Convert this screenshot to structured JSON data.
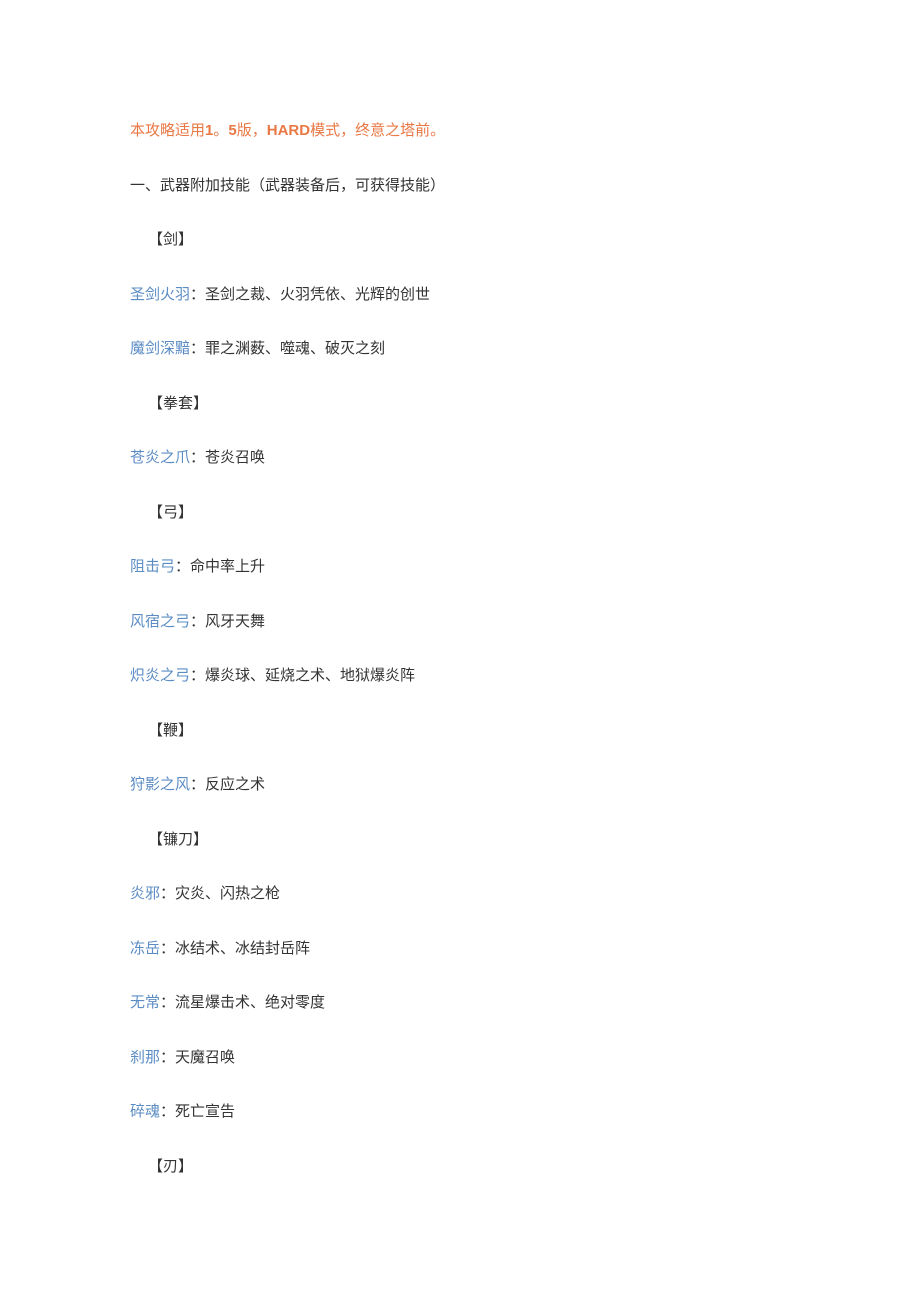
{
  "intro": {
    "prefix": "本攻略适用",
    "version_bold": "1",
    "version_rest": "。",
    "version_bold2": "5",
    "suffix": "版，",
    "hard": "HARD",
    "end": "模式，终意之塔前。"
  },
  "section_title": "一、武器附加技能（武器装备后，可获得技能）",
  "categories": [
    {
      "header": "【剑】",
      "items": [
        {
          "name": "圣剑火羽",
          "skills": "：圣剑之裁、火羽凭依、光辉的创世"
        },
        {
          "name": "魔剑深黯",
          "skills": "：罪之渊薮、噬魂、破灭之刻"
        }
      ]
    },
    {
      "header": "【拳套】",
      "items": [
        {
          "name": "苍炎之爪",
          "skills": "：苍炎召唤"
        }
      ]
    },
    {
      "header": "【弓】",
      "items": [
        {
          "name": "阻击弓",
          "skills": "：命中率上升"
        },
        {
          "name": "风宿之弓",
          "skills": "：风牙天舞"
        },
        {
          "name": "炽炎之弓",
          "skills": "：爆炎球、延烧之术、地狱爆炎阵"
        }
      ]
    },
    {
      "header": "【鞭】",
      "items": [
        {
          "name": "狩影之风",
          "skills": "：反应之术"
        }
      ]
    },
    {
      "header": "【镰刀】",
      "items": [
        {
          "name": "炎邪",
          "skills": "：灾炎、闪热之枪"
        },
        {
          "name": "冻岳",
          "skills": "：冰结术、冰结封岳阵"
        },
        {
          "name": "无常",
          "skills": "：流星爆击术、绝对零度"
        },
        {
          "name": "刹那",
          "skills": "：天魔召唤"
        },
        {
          "name": "碎魂",
          "skills": "：死亡宣告"
        }
      ]
    },
    {
      "header": "【刃】",
      "items": []
    }
  ]
}
